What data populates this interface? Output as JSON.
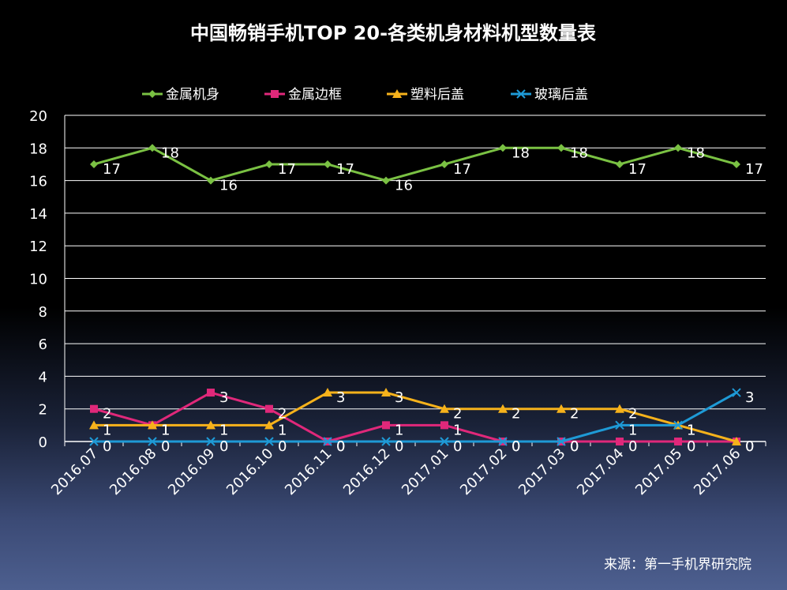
{
  "chart_data": {
    "type": "line",
    "title": "中国畅销手机TOP 20-各类机身材料机型数量表",
    "categories": [
      "2016.07",
      "2016.08",
      "2016.09",
      "2016.10",
      "2016.11",
      "2016.12",
      "2017.01",
      "2017.02",
      "2017.03",
      "2017.04",
      "2017.05",
      "2017.06"
    ],
    "ylim": [
      0,
      20
    ],
    "yticks": [
      0,
      2,
      4,
      6,
      8,
      10,
      12,
      14,
      16,
      18,
      20
    ],
    "grid": true,
    "legend_position": "top",
    "xlabel": "",
    "ylabel": "",
    "series": [
      {
        "name": "金属机身",
        "color": "#7ac143",
        "marker": "diamond",
        "values": [
          17,
          18,
          16,
          17,
          17,
          16,
          17,
          18,
          18,
          17,
          18,
          17
        ]
      },
      {
        "name": "金属边框",
        "color": "#e0287a",
        "marker": "square",
        "values": [
          2,
          1,
          3,
          2,
          0,
          1,
          1,
          0,
          0,
          0,
          0,
          0
        ]
      },
      {
        "name": "塑料后盖",
        "color": "#f6b21b",
        "marker": "triangle",
        "values": [
          1,
          1,
          1,
          1,
          3,
          3,
          2,
          2,
          2,
          2,
          1,
          0
        ]
      },
      {
        "name": "玻璃后盖",
        "color": "#1e9ad6",
        "marker": "x",
        "values": [
          0,
          0,
          0,
          0,
          0,
          0,
          0,
          0,
          0,
          1,
          1,
          3
        ]
      }
    ],
    "source": "来源：第一手机界研究院"
  }
}
